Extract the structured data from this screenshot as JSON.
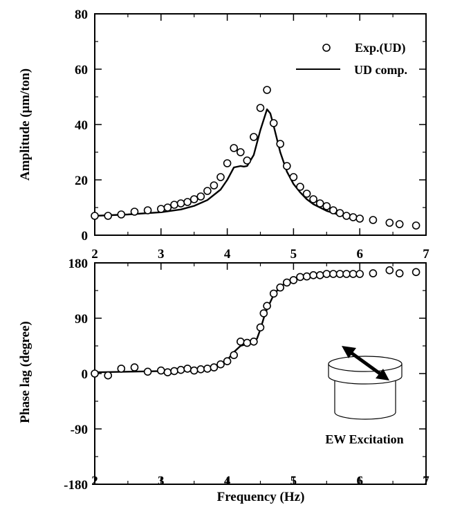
{
  "chart_data": [
    {
      "type": "line",
      "xlim": [
        2,
        7
      ],
      "ylim": [
        0,
        80
      ],
      "x_ticks": [
        "2",
        "3",
        "4",
        "5",
        "6",
        "7"
      ],
      "y_ticks": [
        "0",
        "20",
        "40",
        "60",
        "80"
      ],
      "ylabel": "Amplitude (μm/ton)",
      "xlabel": "",
      "legend_position": "top-right",
      "series": [
        {
          "name": "Exp.(UD)",
          "style": "markers",
          "x": [
            2.0,
            2.2,
            2.4,
            2.6,
            2.8,
            3.0,
            3.1,
            3.2,
            3.3,
            3.4,
            3.5,
            3.6,
            3.7,
            3.8,
            3.9,
            4.0,
            4.1,
            4.2,
            4.3,
            4.4,
            4.5,
            4.6,
            4.7,
            4.8,
            4.9,
            5.0,
            5.1,
            5.2,
            5.3,
            5.4,
            5.5,
            5.6,
            5.7,
            5.8,
            5.9,
            6.0,
            6.2,
            6.45,
            6.6,
            6.85
          ],
          "values": [
            7.0,
            7.0,
            7.5,
            8.5,
            9.0,
            9.5,
            10.0,
            11.0,
            11.5,
            12.0,
            13.0,
            14.0,
            16.0,
            18.0,
            21.0,
            26.0,
            31.5,
            30.0,
            27.0,
            35.5,
            46.0,
            52.5,
            40.5,
            33.0,
            25.0,
            21.0,
            17.5,
            15.0,
            13.0,
            11.5,
            10.5,
            9.0,
            8.0,
            7.0,
            6.5,
            6.0,
            5.5,
            4.5,
            4.0,
            3.5
          ]
        },
        {
          "name": "UD comp.",
          "style": "line",
          "x": [
            2.0,
            2.5,
            3.0,
            3.3,
            3.5,
            3.7,
            3.9,
            4.0,
            4.1,
            4.2,
            4.25,
            4.3,
            4.4,
            4.5,
            4.6,
            4.65,
            4.7,
            4.8,
            4.9,
            5.0,
            5.1,
            5.2,
            5.3,
            5.5,
            5.7,
            6.0
          ],
          "values": [
            7.0,
            7.5,
            8.3,
            9.3,
            10.6,
            12.7,
            16.5,
            20.0,
            24.5,
            25.0,
            24.8,
            25.0,
            29.0,
            38.0,
            45.5,
            44.0,
            39.5,
            30.0,
            23.0,
            18.5,
            15.5,
            13.0,
            11.2,
            8.8,
            7.3,
            5.8
          ]
        }
      ]
    },
    {
      "type": "line",
      "xlim": [
        2,
        7
      ],
      "ylim": [
        -180,
        180
      ],
      "x_ticks": [
        "2",
        "3",
        "4",
        "5",
        "6",
        "7"
      ],
      "y_ticks": [
        "180",
        "90",
        "0",
        "-90",
        "-180"
      ],
      "ylabel": "Phase lag (degree)",
      "xlabel": "Frequency (Hz)",
      "annotation": "EW Excitation",
      "series": [
        {
          "style": "markers",
          "x": [
            2.0,
            2.2,
            2.4,
            2.6,
            2.8,
            3.0,
            3.1,
            3.2,
            3.3,
            3.4,
            3.5,
            3.6,
            3.7,
            3.8,
            3.9,
            4.0,
            4.1,
            4.2,
            4.3,
            4.4,
            4.5,
            4.55,
            4.6,
            4.7,
            4.8,
            4.9,
            5.0,
            5.1,
            5.2,
            5.3,
            5.4,
            5.5,
            5.6,
            5.7,
            5.8,
            5.9,
            6.0,
            6.2,
            6.45,
            6.6,
            6.85
          ],
          "values": [
            0,
            -3,
            8,
            10,
            3,
            5,
            2,
            4,
            6,
            8,
            5,
            7,
            8,
            10,
            15,
            20,
            30,
            52,
            50,
            52,
            75,
            98,
            110,
            130,
            140,
            148,
            152,
            157,
            158,
            160,
            160,
            162,
            162,
            162,
            162,
            162,
            162,
            163,
            168,
            163,
            165
          ]
        },
        {
          "style": "line",
          "x": [
            2.0,
            2.5,
            3.0,
            3.4,
            3.6,
            3.8,
            3.9,
            4.0,
            4.1,
            4.2,
            4.3,
            4.4,
            4.45,
            4.5,
            4.55,
            4.6,
            4.7,
            4.8,
            4.9,
            5.0,
            5.2,
            5.5,
            6.0
          ],
          "values": [
            2,
            3,
            4,
            6,
            8,
            12,
            16,
            22,
            35,
            45,
            48,
            50,
            57,
            72,
            90,
            105,
            128,
            141,
            149,
            154,
            158,
            161,
            162
          ]
        }
      ]
    }
  ]
}
